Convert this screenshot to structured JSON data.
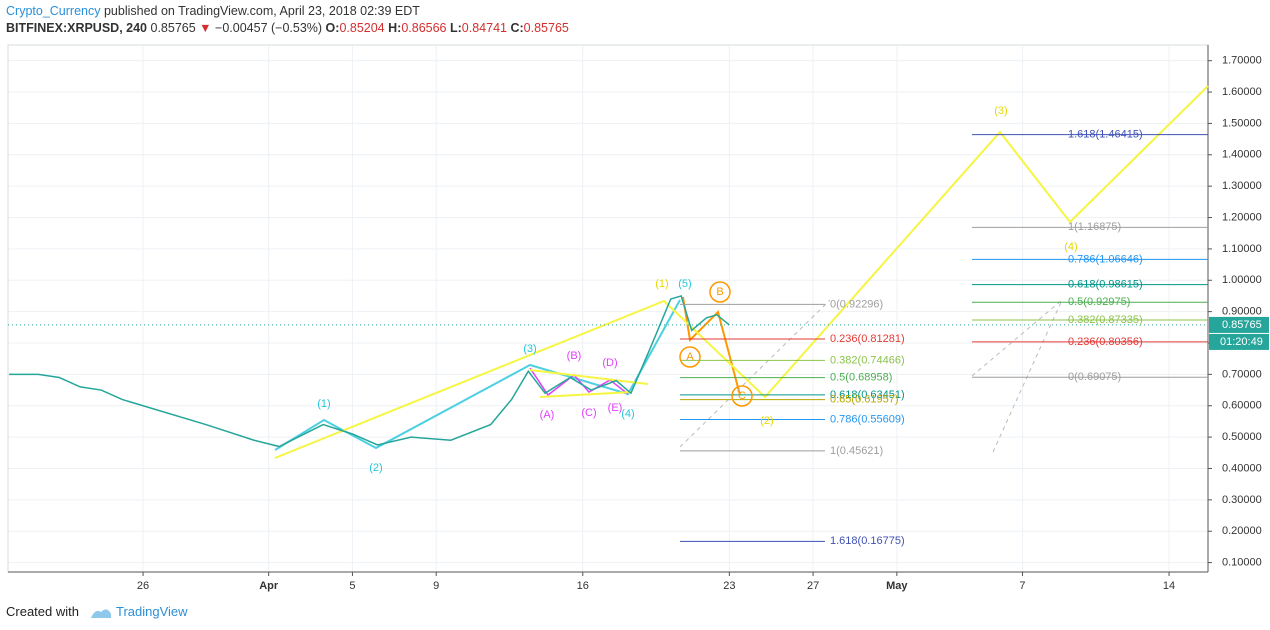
{
  "header": {
    "author": "Crypto_Currency",
    "published": "published on TradingView.com, April 23, 2018 02:39 EDT",
    "symbol": "BITFINEX:XRPUSD, 240",
    "last": "0.85765",
    "arrow": "▼",
    "change": "−0.00457 (−0.53%)",
    "o_label": "O:",
    "o": "0.85204",
    "h_label": "H:",
    "h": "0.86566",
    "l_label": "L:",
    "l": "0.84741",
    "c_label": "C:",
    "c": "0.85765"
  },
  "chart_data": {
    "type": "line",
    "series": [
      {
        "name": "XRPUSD",
        "color": "#26a69a",
        "x": [
          78.6,
          80,
          81,
          82,
          83,
          84,
          85,
          88,
          90.3,
          91.5,
          93.6,
          95,
          96.2,
          97.8,
          99.7,
          101.6,
          102.6,
          103.4,
          104.2,
          105.4,
          106.4,
          107.6,
          108.3,
          109.2,
          110.2,
          110.7,
          111.2,
          111.9,
          112.4,
          113
        ],
        "values": [
          0.7,
          0.7,
          0.69,
          0.66,
          0.65,
          0.62,
          0.6,
          0.54,
          0.49,
          0.47,
          0.54,
          0.51,
          0.475,
          0.5,
          0.49,
          0.54,
          0.62,
          0.71,
          0.64,
          0.69,
          0.65,
          0.68,
          0.64,
          0.78,
          0.94,
          0.95,
          0.84,
          0.88,
          0.89,
          0.85765
        ]
      }
    ],
    "xlim": [
      78.55,
      135.86
    ],
    "ylim": [
      0.07,
      1.75
    ],
    "xticks": [
      {
        "value": 85,
        "label": "26"
      },
      {
        "value": 91,
        "label": "Apr"
      },
      {
        "value": 95,
        "label": "5"
      },
      {
        "value": 99,
        "label": "9"
      },
      {
        "value": 106,
        "label": "16"
      },
      {
        "value": 113,
        "label": "23"
      },
      {
        "value": 117,
        "label": "27"
      },
      {
        "value": 121,
        "label": "May"
      },
      {
        "value": 127,
        "label": "7"
      },
      {
        "value": 134,
        "label": "14"
      }
    ],
    "yticks": [
      {
        "value": 0.1,
        "label": "0.10000"
      },
      {
        "value": 0.2,
        "label": "0.20000"
      },
      {
        "value": 0.3,
        "label": "0.30000"
      },
      {
        "value": 0.4,
        "label": "0.40000"
      },
      {
        "value": 0.5,
        "label": "0.50000"
      },
      {
        "value": 0.6,
        "label": "0.60000"
      },
      {
        "value": 0.7,
        "label": "0.70000"
      },
      {
        "value": 0.8,
        "label": "0.80000"
      },
      {
        "value": 0.9,
        "label": "0.90000"
      },
      {
        "value": 1.0,
        "label": "1.00000"
      },
      {
        "value": 1.1,
        "label": "1.10000"
      },
      {
        "value": 1.2,
        "label": "1.20000"
      },
      {
        "value": 1.3,
        "label": "1.30000"
      },
      {
        "value": 1.4,
        "label": "1.40000"
      },
      {
        "value": 1.5,
        "label": "1.50000"
      },
      {
        "value": 1.6,
        "label": "1.60000"
      },
      {
        "value": 1.7,
        "label": "1.70000"
      }
    ],
    "grid": true,
    "last_price_label": "0.85765",
    "countdown": "01:20:49",
    "fib_left": [
      {
        "value": 0.92296,
        "label": "0(0.92296)",
        "color": "#9e9e9e"
      },
      {
        "value": 0.81281,
        "label": "0.236(0.81281)",
        "color": "#e53935"
      },
      {
        "value": 0.74466,
        "label": "0.382(0.74466)",
        "color": "#8bc34a"
      },
      {
        "value": 0.68958,
        "label": "0.5(0.68958)",
        "color": "#4caf50"
      },
      {
        "value": 0.63451,
        "label": "0.618(0.63451)",
        "color": "#009688"
      },
      {
        "value": 0.61957,
        "label": "0.65(0.61957)",
        "color": "#b8a500"
      },
      {
        "value": 0.55609,
        "label": "0.786(0.55609)",
        "color": "#2196f3"
      },
      {
        "value": 0.45621,
        "label": "1(0.45621)",
        "color": "#9e9e9e"
      },
      {
        "value": 0.16775,
        "label": "1.618(0.16775)",
        "color": "#3f51b5"
      }
    ],
    "fib_right": [
      {
        "value": 1.46415,
        "label": "1.618(1.46415)",
        "color": "#3f51b5"
      },
      {
        "value": 1.16875,
        "label": "1(1.16875)",
        "color": "#9e9e9e"
      },
      {
        "value": 1.06646,
        "label": "0.786(1.06646)",
        "color": "#2196f3"
      },
      {
        "value": 0.98615,
        "label": "0.618(0.98615)",
        "color": "#009688"
      },
      {
        "value": 0.92975,
        "label": "0.5(0.92975)",
        "color": "#4caf50"
      },
      {
        "value": 0.87335,
        "label": "0.382(0.87335)",
        "color": "#8bc34a"
      },
      {
        "value": 0.80356,
        "label": "0.236(0.80356)",
        "color": "#e53935"
      },
      {
        "value": 0.69075,
        "label": "0(0.69075)",
        "color": "#9e9e9e"
      }
    ],
    "annotations": {
      "cyan": [
        "(1)",
        "(2)",
        "(3)",
        "(4)",
        "(5)"
      ],
      "magenta": [
        "(A)",
        "(B)",
        "(C)",
        "(D)",
        "(E)"
      ],
      "orange": [
        "A",
        "B",
        "C"
      ],
      "yellow": [
        "(1)",
        "(2)",
        "(3)",
        "(4)"
      ]
    }
  },
  "footer": {
    "created": "Created with",
    "brand": "TradingView"
  }
}
